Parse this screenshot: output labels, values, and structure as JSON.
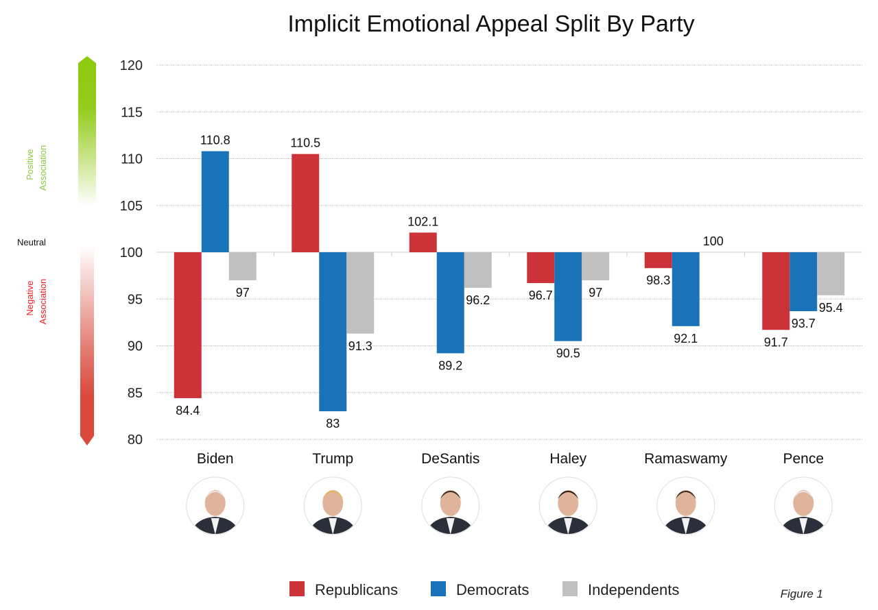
{
  "chart_data": {
    "type": "bar",
    "title": "Implicit Emotional Appeal Split By Party",
    "categories": [
      "Biden",
      "Trump",
      "DeSantis",
      "Haley",
      "Ramaswamy",
      "Pence"
    ],
    "baseline": 100,
    "ylim": [
      80,
      120
    ],
    "yticks": [
      80,
      85,
      90,
      95,
      100,
      105,
      110,
      115,
      120
    ],
    "grid": true,
    "legend_position": "bottom",
    "series": [
      {
        "name": "Republicans",
        "color": "#cc3338",
        "values": [
          84.4,
          110.5,
          102.1,
          96.7,
          98.3,
          91.7
        ]
      },
      {
        "name": "Democrats",
        "color": "#1a72b8",
        "values": [
          110.8,
          83,
          89.2,
          90.5,
          92.1,
          93.7
        ]
      },
      {
        "name": "Independents",
        "color": "#c0c0c0",
        "values": [
          97,
          91.3,
          96.2,
          97,
          100,
          95.4
        ]
      }
    ],
    "scale_labels": {
      "positive": [
        "Positive",
        "Association"
      ],
      "neutral": "Neutral",
      "negative": [
        "Negative",
        "Association"
      ]
    },
    "scale_colors": {
      "positive": "#8cc90a",
      "negative": "#d94a3c",
      "positive_text": "#8cc63f",
      "negative_text": "#ee1c25"
    },
    "portrait_icons": [
      "person-portrait",
      "person-portrait",
      "person-portrait",
      "person-portrait",
      "person-portrait",
      "person-portrait"
    ],
    "caption": "Figure 1"
  }
}
